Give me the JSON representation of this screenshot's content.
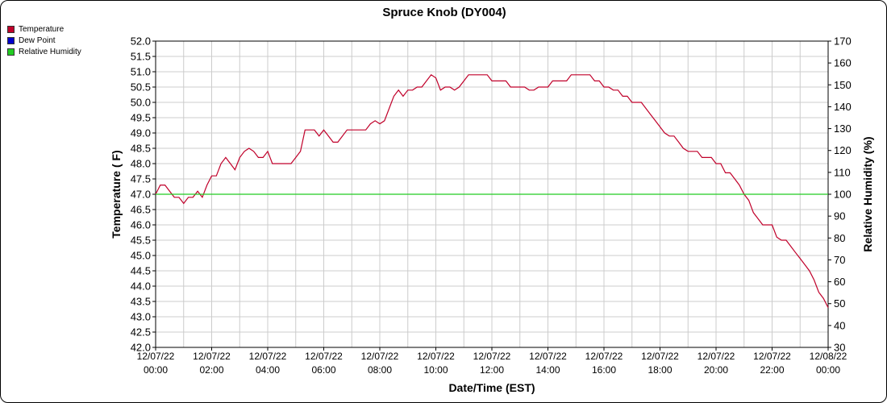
{
  "chart_data": {
    "type": "line",
    "title": "Spruce Knob (DY004)",
    "xlabel": "Date/Time (EST)",
    "ylabel": "Temperature ( F)",
    "y2label": "Relative Humidity (%)",
    "ylim": [
      42.0,
      52.0
    ],
    "y2lim": [
      30,
      170
    ],
    "grid": true,
    "legend_placement": "top-left",
    "x_ticks": [
      {
        "hours": 0,
        "date": "12/07/22",
        "time": "00:00"
      },
      {
        "hours": 2,
        "date": "12/07/22",
        "time": "02:00"
      },
      {
        "hours": 4,
        "date": "12/07/22",
        "time": "04:00"
      },
      {
        "hours": 6,
        "date": "12/07/22",
        "time": "06:00"
      },
      {
        "hours": 8,
        "date": "12/07/22",
        "time": "08:00"
      },
      {
        "hours": 10,
        "date": "12/07/22",
        "time": "10:00"
      },
      {
        "hours": 12,
        "date": "12/07/22",
        "time": "12:00"
      },
      {
        "hours": 14,
        "date": "12/07/22",
        "time": "14:00"
      },
      {
        "hours": 16,
        "date": "12/07/22",
        "time": "16:00"
      },
      {
        "hours": 18,
        "date": "12/07/22",
        "time": "18:00"
      },
      {
        "hours": 20,
        "date": "12/07/22",
        "time": "20:00"
      },
      {
        "hours": 22,
        "date": "12/07/22",
        "time": "22:00"
      },
      {
        "hours": 24,
        "date": "12/08/22",
        "time": "00:00"
      }
    ],
    "y_ticks": [
      "42.0",
      "42.5",
      "43.0",
      "43.5",
      "44.0",
      "44.5",
      "45.0",
      "45.5",
      "46.0",
      "46.5",
      "47.0",
      "47.5",
      "48.0",
      "48.5",
      "49.0",
      "49.5",
      "50.0",
      "50.5",
      "51.0",
      "51.5",
      "52.0"
    ],
    "y2_ticks": [
      "30",
      "40",
      "50",
      "60",
      "70",
      "80",
      "90",
      "100",
      "110",
      "120",
      "130",
      "140",
      "150",
      "160",
      "170"
    ],
    "series": [
      {
        "name": "Temperature",
        "color": "#c0002a",
        "axis": "left",
        "x": [
          0,
          0.167,
          0.333,
          0.5,
          0.667,
          0.833,
          1.0,
          1.167,
          1.333,
          1.5,
          1.667,
          1.833,
          2.0,
          2.167,
          2.333,
          2.5,
          2.667,
          2.833,
          3.0,
          3.167,
          3.333,
          3.5,
          3.667,
          3.833,
          4.0,
          4.167,
          4.333,
          4.5,
          4.667,
          4.833,
          5.0,
          5.167,
          5.333,
          5.5,
          5.667,
          5.833,
          6.0,
          6.167,
          6.333,
          6.5,
          6.667,
          6.833,
          7.0,
          7.167,
          7.333,
          7.5,
          7.667,
          7.833,
          8.0,
          8.167,
          8.333,
          8.5,
          8.667,
          8.833,
          9.0,
          9.167,
          9.333,
          9.5,
          9.667,
          9.833,
          10.0,
          10.167,
          10.333,
          10.5,
          10.667,
          10.833,
          11.0,
          11.167,
          11.333,
          11.5,
          11.667,
          11.833,
          12.0,
          12.167,
          12.333,
          12.5,
          12.667,
          12.833,
          13.0,
          13.167,
          13.333,
          13.5,
          13.667,
          13.833,
          14.0,
          14.167,
          14.333,
          14.5,
          14.667,
          14.833,
          15.0,
          15.167,
          15.333,
          15.5,
          15.667,
          15.833,
          16.0,
          16.167,
          16.333,
          16.5,
          16.667,
          16.833,
          17.0,
          17.167,
          17.333,
          17.5,
          17.667,
          17.833,
          18.0,
          18.167,
          18.333,
          18.5,
          18.667,
          18.833,
          19.0,
          19.167,
          19.333,
          19.5,
          19.667,
          19.833,
          20.0,
          20.167,
          20.333,
          20.5,
          20.667,
          20.833,
          21.0,
          21.167,
          21.333,
          21.5,
          21.667,
          21.833,
          22.0,
          22.167,
          22.333,
          22.5,
          22.667,
          22.833,
          23.0,
          23.167,
          23.333,
          23.5,
          23.667,
          23.833,
          24.0
        ],
        "y": [
          47.0,
          47.3,
          47.3,
          47.1,
          46.9,
          46.9,
          46.7,
          46.9,
          46.9,
          47.1,
          46.9,
          47.3,
          47.6,
          47.6,
          48.0,
          48.2,
          48.0,
          47.8,
          48.2,
          48.4,
          48.5,
          48.4,
          48.2,
          48.2,
          48.4,
          48.0,
          48.0,
          48.0,
          48.0,
          48.0,
          48.2,
          48.4,
          49.1,
          49.1,
          49.1,
          48.9,
          49.1,
          48.9,
          48.7,
          48.7,
          48.9,
          49.1,
          49.1,
          49.1,
          49.1,
          49.1,
          49.3,
          49.4,
          49.3,
          49.4,
          49.8,
          50.2,
          50.4,
          50.2,
          50.4,
          50.4,
          50.5,
          50.5,
          50.7,
          50.9,
          50.8,
          50.4,
          50.5,
          50.5,
          50.4,
          50.5,
          50.7,
          50.9,
          50.9,
          50.9,
          50.9,
          50.9,
          50.7,
          50.7,
          50.7,
          50.7,
          50.5,
          50.5,
          50.5,
          50.5,
          50.4,
          50.4,
          50.5,
          50.5,
          50.5,
          50.7,
          50.7,
          50.7,
          50.7,
          50.9,
          50.9,
          50.9,
          50.9,
          50.9,
          50.7,
          50.7,
          50.5,
          50.5,
          50.4,
          50.4,
          50.2,
          50.2,
          50.0,
          50.0,
          50.0,
          49.8,
          49.6,
          49.4,
          49.2,
          49.0,
          48.9,
          48.9,
          48.7,
          48.5,
          48.4,
          48.4,
          48.4,
          48.2,
          48.2,
          48.2,
          48.0,
          48.0,
          47.7,
          47.7,
          47.5,
          47.3,
          47.0,
          46.8,
          46.4,
          46.2,
          46.0,
          46.0,
          46.0,
          45.6,
          45.5,
          45.5,
          45.3,
          45.1,
          44.9,
          44.7,
          44.5,
          44.2,
          43.8,
          43.6,
          43.3
        ]
      },
      {
        "name": "Dew Point",
        "color": "#0000cc",
        "axis": "left",
        "x": [],
        "y": []
      },
      {
        "name": "Relative Humidity",
        "color": "#22cc22",
        "axis": "right",
        "x": [
          0,
          24
        ],
        "y": [
          100,
          100
        ]
      }
    ]
  }
}
